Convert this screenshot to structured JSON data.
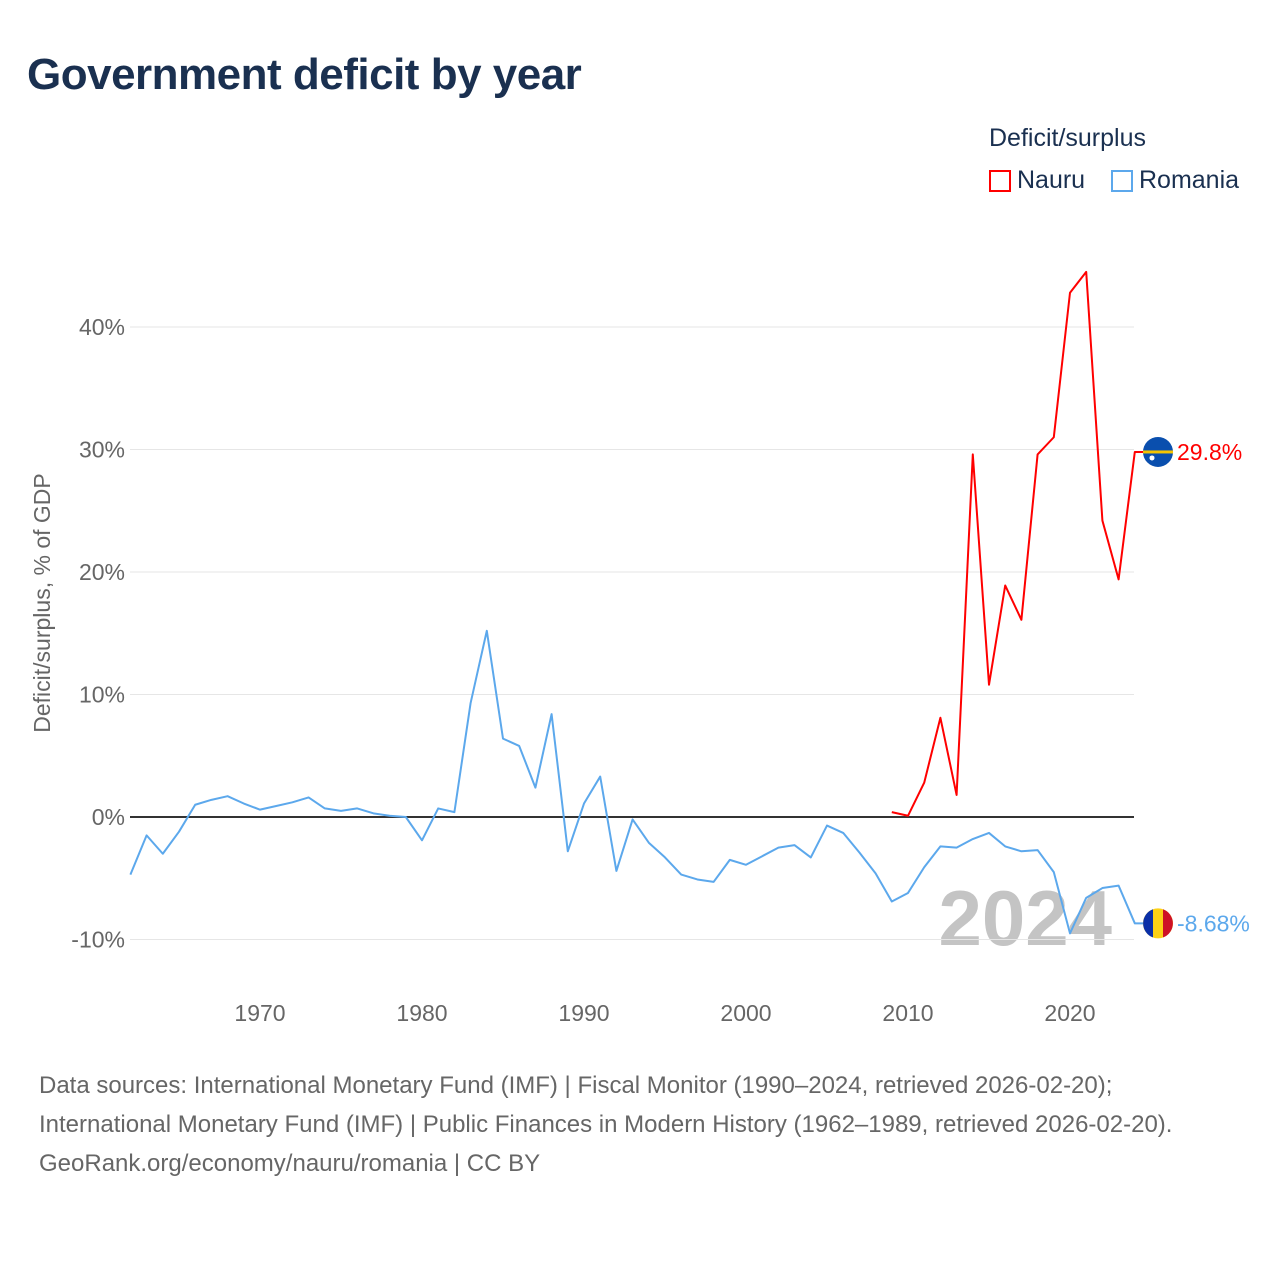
{
  "title": "Government deficit by year",
  "legend": {
    "title": "Deficit/surplus",
    "items": [
      {
        "label": "Nauru",
        "color": "#ff0000"
      },
      {
        "label": "Romania",
        "color": "#5ca8ec"
      }
    ]
  },
  "chart_data": {
    "type": "line",
    "title": "Government deficit by year",
    "xlabel": "",
    "ylabel": "Deficit/surplus, % of GDP",
    "xlim": [
      1962,
      2024
    ],
    "ylim": [
      -12,
      46
    ],
    "x_ticks": [
      1970,
      1980,
      1990,
      2000,
      2010,
      2020
    ],
    "y_ticks": [
      {
        "v": -10,
        "label": "-10%"
      },
      {
        "v": 0,
        "label": "0%"
      },
      {
        "v": 10,
        "label": "10%"
      },
      {
        "v": 20,
        "label": "20%"
      },
      {
        "v": 30,
        "label": "30%"
      },
      {
        "v": 40,
        "label": "40%"
      }
    ],
    "grid": true,
    "year_watermark": "2024",
    "series": [
      {
        "name": "Nauru",
        "color": "#ff0000",
        "start_year": 2009,
        "end_label": "29.8%",
        "values": [
          0.4,
          0.1,
          2.8,
          8.1,
          1.8,
          29.6,
          10.8,
          18.9,
          16.1,
          29.6,
          31.0,
          42.8,
          44.5,
          24.2,
          19.4,
          29.8
        ]
      },
      {
        "name": "Romania",
        "color": "#5ca8ec",
        "start_year": 1962,
        "end_label": "-8.68%",
        "values": [
          -4.7,
          -1.5,
          -3.0,
          -1.2,
          1.0,
          1.4,
          1.7,
          1.1,
          0.6,
          0.9,
          1.2,
          1.6,
          0.7,
          0.5,
          0.7,
          0.3,
          0.1,
          0.0,
          -1.9,
          0.7,
          0.4,
          9.3,
          15.2,
          6.4,
          5.8,
          2.4,
          8.4,
          -2.8,
          1.1,
          3.3,
          -4.4,
          -0.2,
          -2.1,
          -3.3,
          -4.7,
          -5.1,
          -5.3,
          -3.5,
          -3.9,
          -3.2,
          -2.5,
          -2.3,
          -3.3,
          -0.7,
          -1.3,
          -2.9,
          -4.6,
          -6.9,
          -6.2,
          -4.1,
          -2.4,
          -2.5,
          -1.8,
          -1.3,
          -2.4,
          -2.8,
          -2.7,
          -4.5,
          -9.5,
          -6.6,
          -5.8,
          -5.6,
          -8.68
        ]
      }
    ]
  },
  "footer": {
    "sources": "Data sources: International Monetary Fund (IMF) | Fiscal Monitor (1990–2024, retrieved 2026-02-20); International Monetary Fund (IMF) | Public Finances in Modern History (1962–1989, retrieved 2026-02-20).",
    "credit": "GeoRank.org/economy/nauru/romania | CC BY"
  }
}
